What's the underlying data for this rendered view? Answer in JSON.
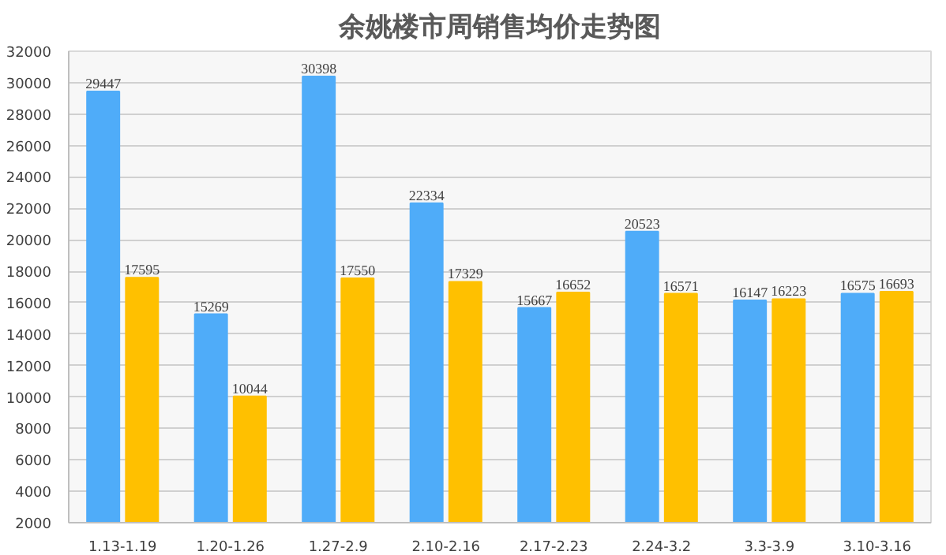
{
  "chart_data": {
    "type": "bar",
    "title": "余姚楼市周销售均价走势图",
    "categories": [
      "1.13-1.19",
      "1.20-1.26",
      "1.27-2.9",
      "2.10-2.16",
      "2.17-2.23",
      "2.24-3.2",
      "3.3-3.9",
      "3.10-3.16"
    ],
    "series": [
      {
        "color": "#4facf9",
        "values": [
          29447,
          15269,
          30398,
          22334,
          15667,
          20523,
          16147,
          16575
        ]
      },
      {
        "color": "#ffc000",
        "values": [
          17595,
          10044,
          17550,
          17329,
          16652,
          16571,
          16223,
          16693
        ]
      }
    ],
    "ylim": [
      2000,
      32000
    ],
    "yticks": [
      2000,
      4000,
      6000,
      8000,
      10000,
      12000,
      14000,
      16000,
      18000,
      20000,
      22000,
      24000,
      26000,
      28000,
      30000,
      32000
    ],
    "grid": "y",
    "data_labels": true
  }
}
